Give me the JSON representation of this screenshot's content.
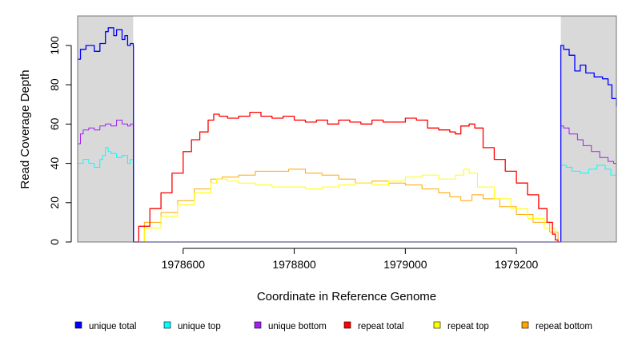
{
  "chart_data": {
    "type": "line",
    "title": "",
    "xlabel": "Coordinate in Reference Genome",
    "ylabel": "Read Coverage Depth",
    "xlim": [
      1978410,
      1979380
    ],
    "ylim": [
      0,
      115
    ],
    "xticks": [
      1978600,
      1978800,
      1979000,
      1979200
    ],
    "xtick_labels": [
      "1978600",
      "1978800",
      "1979000",
      "1979200"
    ],
    "yticks": [
      0,
      20,
      40,
      60,
      80,
      100
    ],
    "ytick_labels": [
      "0",
      "20",
      "40",
      "60",
      "80",
      "100"
    ],
    "grid": false,
    "legend_position": "bottom",
    "shaded_regions": [
      {
        "x_start": 1978410,
        "x_end": 1978510,
        "color": "#d9d9d9"
      },
      {
        "x_start": 1979280,
        "x_end": 1979380,
        "color": "#d9d9d9"
      }
    ],
    "series": [
      {
        "name": "unique total",
        "color": "#0000ff",
        "x": [
          1978410,
          1978415,
          1978425,
          1978440,
          1978450,
          1978460,
          1978465,
          1978475,
          1978480,
          1978490,
          1978495,
          1978500,
          1978505,
          1978510,
          1978510.5,
          1979279.5,
          1979280,
          1979285,
          1979295,
          1979305,
          1979315,
          1979325,
          1979340,
          1979355,
          1979365,
          1979372,
          1979380
        ],
        "y": [
          93,
          98,
          100,
          97,
          101,
          107,
          109,
          105,
          108,
          103,
          105,
          100,
          101,
          100,
          0,
          0,
          100,
          98,
          95,
          87,
          90,
          86,
          84,
          83,
          80,
          73,
          69
        ]
      },
      {
        "name": "unique top",
        "color": "#00ffff",
        "x": [
          1978410,
          1978420,
          1978430,
          1978440,
          1978450,
          1978455,
          1978460,
          1978465,
          1978470,
          1978480,
          1978490,
          1978500,
          1978505,
          1978510,
          1978510.5,
          1979279.5,
          1979280,
          1979290,
          1979300,
          1979315,
          1979330,
          1979345,
          1979360,
          1979370,
          1979380
        ],
        "y": [
          40,
          42,
          40,
          38,
          42,
          44,
          48,
          46,
          45,
          43,
          44,
          40,
          42,
          41,
          0,
          0,
          39,
          38,
          36,
          35,
          37,
          39,
          37,
          34,
          30
        ]
      },
      {
        "name": "unique bottom",
        "color": "#a020f0",
        "x": [
          1978410,
          1978415,
          1978420,
          1978430,
          1978440,
          1978450,
          1978460,
          1978470,
          1978480,
          1978490,
          1978500,
          1978505,
          1978510,
          1978510.5,
          1979279.5,
          1979280,
          1979285,
          1979295,
          1979310,
          1979320,
          1979335,
          1979350,
          1979365,
          1979375,
          1979380
        ],
        "y": [
          50,
          55,
          57,
          58,
          57,
          59,
          60,
          59,
          62,
          60,
          59,
          60,
          58,
          0,
          0,
          59,
          58,
          55,
          52,
          49,
          46,
          43,
          41,
          40,
          38
        ]
      },
      {
        "name": "repeat total",
        "color": "#ff0000",
        "x": [
          1978510,
          1978520,
          1978540,
          1978560,
          1978580,
          1978600,
          1978615,
          1978630,
          1978645,
          1978655,
          1978665,
          1978680,
          1978700,
          1978720,
          1978740,
          1978760,
          1978780,
          1978800,
          1978820,
          1978840,
          1978860,
          1978880,
          1978900,
          1978920,
          1978940,
          1978960,
          1978980,
          1979000,
          1979020,
          1979040,
          1979060,
          1979080,
          1979090,
          1979100,
          1979115,
          1979125,
          1979140,
          1979160,
          1979180,
          1979200,
          1979220,
          1979240,
          1979255,
          1979265,
          1979270,
          1979275
        ],
        "y": [
          0,
          8,
          17,
          25,
          35,
          46,
          52,
          56,
          62,
          65,
          64,
          63,
          64,
          66,
          64,
          63,
          64,
          62,
          61,
          62,
          60,
          62,
          61,
          60,
          62,
          61,
          61,
          63,
          62,
          58,
          57,
          56,
          55,
          59,
          60,
          58,
          48,
          42,
          36,
          30,
          24,
          17,
          10,
          4,
          1,
          0
        ]
      },
      {
        "name": "repeat top",
        "color": "#ffff00",
        "x": [
          1978510,
          1978530,
          1978560,
          1978590,
          1978620,
          1978650,
          1978660,
          1978680,
          1978700,
          1978730,
          1978760,
          1978790,
          1978820,
          1978850,
          1978880,
          1978910,
          1978940,
          1978970,
          1979000,
          1979030,
          1979060,
          1979090,
          1979105,
          1979115,
          1979130,
          1979160,
          1979190,
          1979220,
          1979250,
          1979270,
          1979275
        ],
        "y": [
          0,
          7,
          13,
          19,
          25,
          30,
          32,
          31,
          30,
          29,
          28,
          28,
          27,
          28,
          29,
          30,
          29,
          31,
          33,
          34,
          32,
          34,
          37,
          35,
          28,
          22,
          17,
          12,
          7,
          1,
          0
        ]
      },
      {
        "name": "repeat bottom",
        "color": "#ffa500",
        "x": [
          1978510,
          1978530,
          1978560,
          1978590,
          1978620,
          1978650,
          1978670,
          1978700,
          1978730,
          1978760,
          1978790,
          1978820,
          1978850,
          1978880,
          1978910,
          1978940,
          1978970,
          1979000,
          1979030,
          1979060,
          1979080,
          1979100,
          1979120,
          1979140,
          1979170,
          1979200,
          1979230,
          1979260,
          1979275
        ],
        "y": [
          0,
          10,
          15,
          21,
          27,
          32,
          33,
          34,
          36,
          36,
          37,
          35,
          34,
          32,
          30,
          31,
          30,
          29,
          27,
          25,
          23,
          21,
          24,
          22,
          18,
          14,
          10,
          5,
          0
        ]
      }
    ],
    "legend": [
      {
        "label": "unique total",
        "color": "#0000ff"
      },
      {
        "label": "unique top",
        "color": "#00ffff"
      },
      {
        "label": "unique bottom",
        "color": "#a020f0"
      },
      {
        "label": "repeat total",
        "color": "#ff0000"
      },
      {
        "label": "repeat top",
        "color": "#ffff00"
      },
      {
        "label": "repeat bottom",
        "color": "#ffa500"
      }
    ]
  }
}
